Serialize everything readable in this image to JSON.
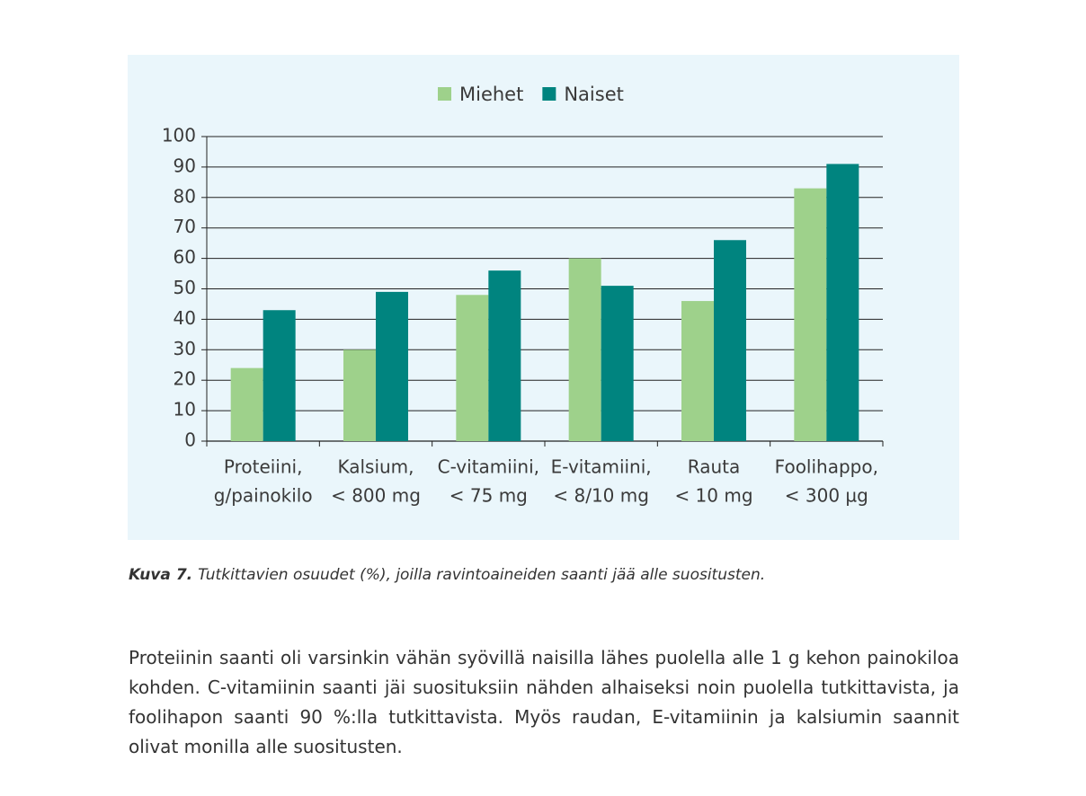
{
  "chart_data": {
    "type": "bar",
    "categories": [
      [
        "Proteiini,",
        "g/painokilo"
      ],
      [
        "Kalsium,",
        "< 800 mg"
      ],
      [
        "C-vitamiini,",
        "< 75 mg"
      ],
      [
        "E-vitamiini,",
        "< 8/10 mg"
      ],
      [
        "Rauta",
        "< 10 mg"
      ],
      [
        "Foolihappo,",
        "< 300 µg"
      ]
    ],
    "series": [
      {
        "name": "Miehet",
        "color": "#9ed18b",
        "values": [
          24,
          30,
          48,
          60,
          46,
          83
        ]
      },
      {
        "name": "Naiset",
        "color": "#00847f",
        "values": [
          43,
          49,
          56,
          51,
          66,
          91
        ]
      }
    ],
    "ylim": [
      0,
      100
    ],
    "yticks": [
      0,
      10,
      20,
      30,
      40,
      50,
      60,
      70,
      80,
      90,
      100
    ],
    "grid": true,
    "legend": "top"
  },
  "document": {
    "caption": {
      "label": "Kuva 7.",
      "text": "Tutkittavien osuudet (%), joilla ravintoaineiden saanti jää alle suositusten."
    },
    "paragraph": "Proteiinin saanti oli varsinkin vähän syövillä naisilla lähes puolella alle 1 g kehon painokiloa kohden. C-vitamiinin saanti jäi suosituksiin nähden alhaiseksi noin puolella tutkittavista, ja foolihapon saanti 90 %:lla tutkittavista. Myös raudan, E-vitamiinin ja kalsiumin saannit olivat monilla alle suositusten."
  }
}
